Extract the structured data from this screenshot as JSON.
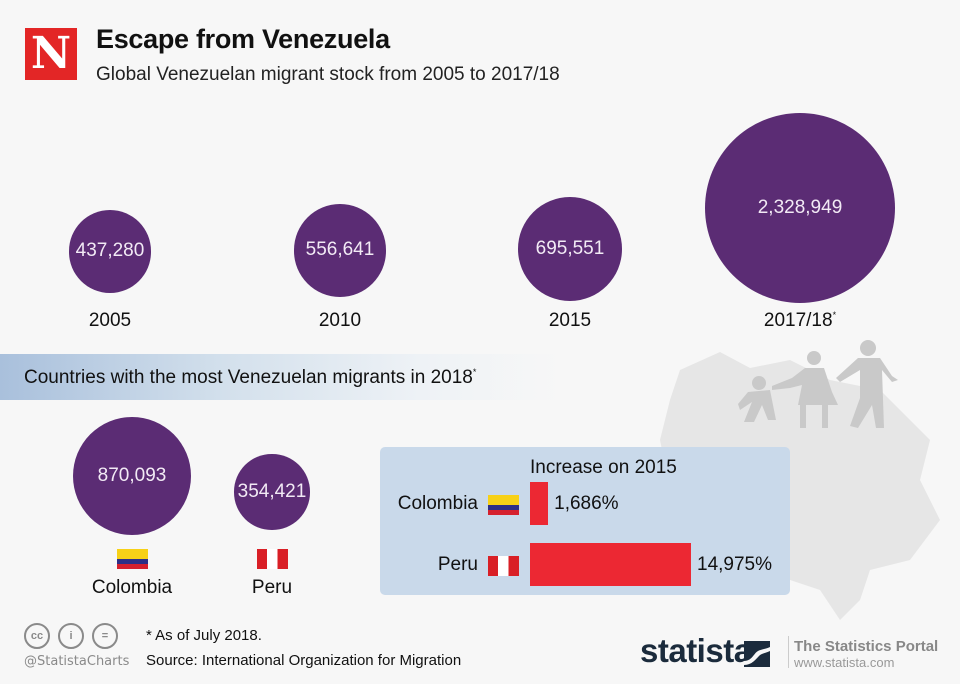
{
  "header": {
    "logo_letter": "N",
    "title": "Escape from Venezuela",
    "subtitle": "Global Venezuelan migrant stock from 2005 to 2017/18"
  },
  "chart_data": [
    {
      "type": "bubble",
      "title": "Global Venezuelan migrant stock from 2005 to 2017/18",
      "categories": [
        "2005",
        "2010",
        "2015",
        "2017/18"
      ],
      "values": [
        437280,
        556641,
        695551,
        2328949
      ],
      "value_labels": [
        "437,280",
        "556,641",
        "695,551",
        "2,328,949"
      ],
      "category_footnote_marks": [
        "",
        "",
        "",
        "*"
      ],
      "color": "#5b2c74"
    },
    {
      "type": "bubble",
      "title": "Countries with the most Venezuelan migrants in 2018",
      "title_footnote_mark": "*",
      "categories": [
        "Colombia",
        "Peru"
      ],
      "values": [
        870093,
        354421
      ],
      "value_labels": [
        "870,093",
        "354,421"
      ],
      "flags": [
        "colombia-flag",
        "peru-flag"
      ],
      "color": "#5b2c74"
    },
    {
      "type": "bar",
      "orientation": "horizontal",
      "title": "Increase on 2015",
      "categories": [
        "Colombia",
        "Peru"
      ],
      "values": [
        1686,
        14975
      ],
      "unit": "%",
      "value_labels": [
        "1,686%",
        "14,975%"
      ],
      "color": "#ec2833"
    }
  ],
  "section": {
    "band_title": "Countries with the most Venezuelan migrants in 2018",
    "band_mark": "*"
  },
  "footer": {
    "note": "* As of July 2018.",
    "source": "Source: International Organization for Migration",
    "handle": "@StatistaCharts",
    "license_icons": [
      "cc-icon",
      "attribution-icon",
      "no-derivatives-icon"
    ],
    "brand": "statista",
    "portal_title": "The Statistics Portal",
    "portal_url": "www.statista.com"
  }
}
